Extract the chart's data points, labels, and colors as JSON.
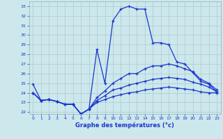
{
  "title": "Graphe des températures (°c)",
  "bg_color": "#cce8ec",
  "grid_color": "#b0d0d8",
  "line_color": "#1a35cc",
  "ylim": [
    21.8,
    33.5
  ],
  "xlim": [
    -0.5,
    23.5
  ],
  "yticks": [
    22,
    23,
    24,
    25,
    26,
    27,
    28,
    29,
    30,
    31,
    32,
    33
  ],
  "xticks": [
    0,
    1,
    2,
    3,
    4,
    5,
    6,
    7,
    8,
    9,
    10,
    11,
    12,
    13,
    14,
    15,
    16,
    17,
    18,
    19,
    20,
    21,
    22,
    23
  ],
  "lines": [
    {
      "x": [
        0,
        1,
        2,
        3,
        4,
        5,
        6,
        7,
        8,
        9,
        10,
        11,
        12,
        13,
        14,
        15,
        16,
        17,
        18,
        19,
        20,
        21,
        22,
        23
      ],
      "y": [
        24.9,
        23.2,
        23.3,
        23.1,
        22.8,
        22.8,
        21.8,
        22.3,
        28.5,
        25.0,
        31.5,
        32.7,
        33.0,
        32.7,
        32.7,
        29.2,
        29.2,
        29.0,
        27.2,
        27.0,
        26.1,
        25.2,
        24.9,
        24.1
      ]
    },
    {
      "x": [
        0,
        1,
        2,
        3,
        4,
        5,
        6,
        7,
        8,
        9,
        10,
        11,
        12,
        13,
        14,
        15,
        16,
        17,
        18,
        19,
        20,
        21,
        22,
        23
      ],
      "y": [
        24.0,
        23.2,
        23.3,
        23.1,
        22.8,
        22.8,
        21.8,
        22.3,
        23.5,
        24.2,
        25.0,
        25.5,
        26.0,
        26.0,
        26.5,
        26.8,
        26.8,
        27.0,
        26.8,
        26.5,
        26.2,
        25.4,
        25.0,
        24.3
      ]
    },
    {
      "x": [
        0,
        1,
        2,
        3,
        4,
        5,
        6,
        7,
        8,
        9,
        10,
        11,
        12,
        13,
        14,
        15,
        16,
        17,
        18,
        19,
        20,
        21,
        22,
        23
      ],
      "y": [
        24.0,
        23.2,
        23.3,
        23.1,
        22.8,
        22.8,
        21.8,
        22.3,
        23.2,
        23.7,
        24.3,
        24.5,
        24.8,
        25.0,
        25.2,
        25.4,
        25.5,
        25.6,
        25.5,
        25.4,
        25.1,
        24.9,
        24.6,
        24.1
      ]
    },
    {
      "x": [
        0,
        1,
        2,
        3,
        4,
        5,
        6,
        7,
        8,
        9,
        10,
        11,
        12,
        13,
        14,
        15,
        16,
        17,
        18,
        19,
        20,
        21,
        22,
        23
      ],
      "y": [
        24.0,
        23.2,
        23.3,
        23.1,
        22.8,
        22.8,
        21.8,
        22.3,
        23.0,
        23.3,
        23.6,
        23.8,
        24.0,
        24.1,
        24.3,
        24.4,
        24.5,
        24.6,
        24.5,
        24.4,
        24.3,
        24.1,
        24.0,
        24.0
      ]
    }
  ]
}
